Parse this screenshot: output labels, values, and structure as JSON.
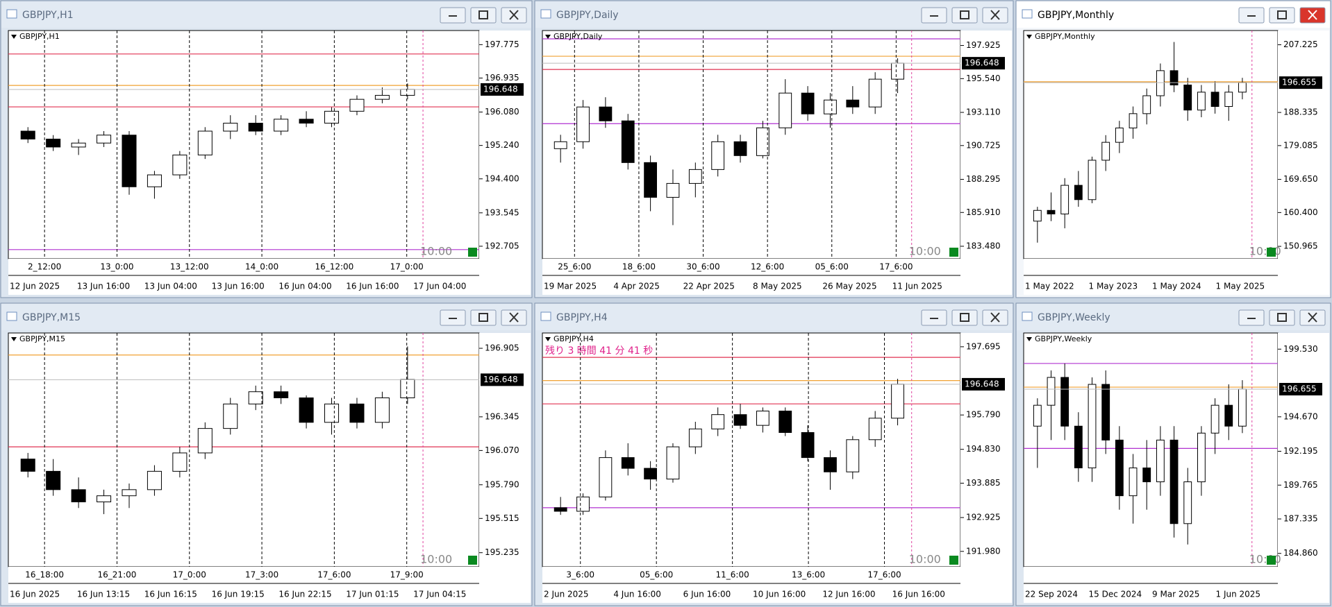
{
  "windows": [
    {
      "title": "GBPJPY,H1",
      "label": "GBPJPY,H1",
      "ylim": [
        192.39,
        198.13
      ],
      "yticks": [
        197.775,
        196.935,
        {
          "value": 196.08,
          "label": "196.080"
        },
        {
          "value": 195.24,
          "label": "195.240"
        },
        {
          "value": 194.4,
          "label": "194.400"
        },
        193.545,
        192.705
      ],
      "price": 196.648,
      "time_marks": [
        "2_12:00",
        "13_0:00",
        "13_12:00",
        "14_0:00",
        "16_12:00",
        "17_0:00"
      ],
      "dates": [
        "12 Jun 2025",
        "13 Jun 16:00",
        "13 Jun 04:00",
        "13 Jun 16:00",
        "16 Jun 04:00",
        "16 Jun 16:00",
        "17 Jun 04:00"
      ],
      "clock": "10:00",
      "levels": [
        {
          "value": 197.54,
          "color": "#e03050"
        },
        {
          "value": 196.75,
          "color": "#f0a030"
        },
        {
          "value": 196.21,
          "color": "#e03050"
        },
        {
          "value": 192.62,
          "color": "#b030d0"
        }
      ],
      "candles": [
        [
          195.6,
          195.7,
          195.3,
          195.4
        ],
        [
          195.4,
          195.5,
          195.1,
          195.2
        ],
        [
          195.2,
          195.4,
          195.0,
          195.3
        ],
        [
          195.3,
          195.6,
          195.2,
          195.5
        ],
        [
          195.5,
          195.6,
          194.0,
          194.2
        ],
        [
          194.2,
          194.6,
          193.9,
          194.5
        ],
        [
          194.5,
          195.1,
          194.4,
          195.0
        ],
        [
          195.0,
          195.7,
          194.9,
          195.6
        ],
        [
          195.6,
          196.0,
          195.4,
          195.8
        ],
        [
          195.8,
          196.0,
          195.5,
          195.6
        ],
        [
          195.6,
          196.0,
          195.5,
          195.9
        ],
        [
          195.9,
          196.1,
          195.7,
          195.8
        ],
        [
          195.8,
          196.2,
          195.7,
          196.1
        ],
        [
          196.1,
          196.5,
          196.0,
          196.4
        ],
        [
          196.4,
          196.7,
          196.3,
          196.5
        ],
        [
          196.5,
          196.8,
          196.4,
          196.65
        ]
      ]
    },
    {
      "title": "GBPJPY,Daily",
      "label": "GBPJPY,Daily",
      "ylim": [
        182.58,
        199.0
      ],
      "yticks": [
        197.925,
        {
          "value": 195.54,
          "label": "195.540"
        },
        {
          "value": 193.11,
          "label": "193.110"
        },
        190.725,
        188.295,
        {
          "value": 185.91,
          "label": "185.910"
        },
        {
          "value": 183.48,
          "label": "183.480"
        }
      ],
      "price": 196.648,
      "time_marks": [
        "25_6:00",
        "18_6:00",
        "30_6:00",
        "12_6:00",
        "05_6:00",
        "17_6:00"
      ],
      "dates": [
        "19 Mar 2025",
        "4 Apr 2025",
        "22 Apr 2025",
        "8 May 2025",
        "26 May 2025",
        "11 Jun 2025"
      ],
      "clock": "10:00",
      "levels": [
        {
          "value": 198.4,
          "color": "#b030d0"
        },
        {
          "value": 197.15,
          "color": "#f0a030"
        },
        {
          "value": 196.2,
          "color": "#e03050"
        },
        {
          "value": 192.3,
          "color": "#b030d0"
        }
      ],
      "candles": [
        [
          190.5,
          191.5,
          189.5,
          191.0
        ],
        [
          191.0,
          194.0,
          190.5,
          193.5
        ],
        [
          193.5,
          194.2,
          192.0,
          192.5
        ],
        [
          192.5,
          193.0,
          189.0,
          189.5
        ],
        [
          189.5,
          190.0,
          186.0,
          187.0
        ],
        [
          187.0,
          189.0,
          185.0,
          188.0
        ],
        [
          188.0,
          189.5,
          187.0,
          189.0
        ],
        [
          189.0,
          191.5,
          188.5,
          191.0
        ],
        [
          191.0,
          191.5,
          189.5,
          190.0
        ],
        [
          190.0,
          192.5,
          189.8,
          192.0
        ],
        [
          192.0,
          195.5,
          191.5,
          194.5
        ],
        [
          194.5,
          195.0,
          192.5,
          193.0
        ],
        [
          193.0,
          194.5,
          192.0,
          194.0
        ],
        [
          194.0,
          195.0,
          193.0,
          193.5
        ],
        [
          193.5,
          196.0,
          193.0,
          195.5
        ],
        [
          195.5,
          197.0,
          194.5,
          196.65
        ]
      ]
    },
    {
      "title": "GBPJPY,Monthly",
      "label": "GBPJPY,Monthly",
      "ylim": [
        147.5,
        211.2
      ],
      "yticks": [
        207.225,
        188.335,
        179.085,
        {
          "value": 169.65,
          "label": "169.650"
        },
        {
          "value": 160.4,
          "label": "160.400"
        },
        150.965
      ],
      "price": 196.655,
      "time_marks": [],
      "dates": [
        "1 May 2022",
        "1 May 2023",
        "1 May 2024",
        "1 May 2025"
      ],
      "clock": "10:00",
      "levels": [
        {
          "value": 196.9,
          "color": "#f0a030"
        }
      ],
      "candles": [
        [
          158,
          162,
          152,
          161
        ],
        [
          161,
          166,
          158,
          160
        ],
        [
          160,
          170,
          156,
          168
        ],
        [
          168,
          172,
          162,
          164
        ],
        [
          164,
          176,
          163,
          175
        ],
        [
          175,
          182,
          172,
          180
        ],
        [
          180,
          186,
          177,
          184
        ],
        [
          184,
          190,
          181,
          188
        ],
        [
          188,
          195,
          185,
          193
        ],
        [
          193,
          202,
          190,
          200
        ],
        [
          200,
          208,
          194,
          196
        ],
        [
          196,
          198,
          186,
          189
        ],
        [
          189,
          196,
          187,
          194
        ],
        [
          194,
          197,
          188,
          190
        ],
        [
          190,
          196,
          186,
          194
        ],
        [
          194,
          198,
          192,
          196.66
        ]
      ]
    },
    {
      "title": "GBPJPY,M15",
      "label": "GBPJPY,M15",
      "ylim": [
        195.12,
        197.03
      ],
      "yticks": [
        196.905,
        196.345,
        {
          "value": 196.07,
          "label": "196.070"
        },
        {
          "value": 195.79,
          "label": "195.790"
        },
        195.515,
        195.235
      ],
      "price": 196.648,
      "time_marks": [
        "16_18:00",
        "16_21:00",
        "17_0:00",
        "17_3:00",
        "17_6:00",
        "17_9:00"
      ],
      "dates": [
        "16 Jun 2025",
        "16 Jun 13:15",
        "16 Jun 16:15",
        "16 Jun 19:15",
        "16 Jun 22:15",
        "17 Jun 01:15",
        "17 Jun 04:15"
      ],
      "clock": "10:00",
      "levels": [
        {
          "value": 196.85,
          "color": "#f0a030"
        },
        {
          "value": 196.1,
          "color": "#e03050"
        }
      ],
      "candles": [
        [
          196.0,
          196.05,
          195.85,
          195.9
        ],
        [
          195.9,
          196.0,
          195.7,
          195.75
        ],
        [
          195.75,
          195.85,
          195.6,
          195.65
        ],
        [
          195.65,
          195.75,
          195.55,
          195.7
        ],
        [
          195.7,
          195.8,
          195.6,
          195.75
        ],
        [
          195.75,
          195.95,
          195.7,
          195.9
        ],
        [
          195.9,
          196.1,
          195.85,
          196.05
        ],
        [
          196.05,
          196.3,
          196.0,
          196.25
        ],
        [
          196.25,
          196.5,
          196.2,
          196.45
        ],
        [
          196.45,
          196.6,
          196.4,
          196.55
        ],
        [
          196.55,
          196.6,
          196.45,
          196.5
        ],
        [
          196.5,
          196.52,
          196.25,
          196.3
        ],
        [
          196.3,
          196.5,
          196.2,
          196.45
        ],
        [
          196.45,
          196.5,
          196.25,
          196.3
        ],
        [
          196.3,
          196.55,
          196.25,
          196.5
        ],
        [
          196.5,
          196.92,
          196.45,
          196.65
        ]
      ]
    },
    {
      "title": "GBPJPY,H4",
      "label": "GBPJPY,H4",
      "countdown": "残り 3 時間 41 分 41 秒",
      "ylim": [
        191.55,
        198.08
      ],
      "yticks": [
        197.695,
        {
          "value": 195.79,
          "label": "195.790"
        },
        {
          "value": 194.83,
          "label": "194.830"
        },
        193.885,
        192.925,
        {
          "value": 191.98,
          "label": "191.980"
        }
      ],
      "price": 196.648,
      "time_marks": [
        "3_6:00",
        "05_6:00",
        "11_6:00",
        "13_6:00",
        "17_6:00"
      ],
      "dates": [
        "2 Jun 2025",
        "4 Jun 16:00",
        "6 Jun 16:00",
        "10 Jun 16:00",
        "12 Jun 16:00",
        "16 Jun 16:00"
      ],
      "clock": "10:00",
      "levels": [
        {
          "value": 197.4,
          "color": "#e03050"
        },
        {
          "value": 196.75,
          "color": "#f0a030"
        },
        {
          "value": 196.1,
          "color": "#e03050"
        },
        {
          "value": 193.2,
          "color": "#b030d0"
        }
      ],
      "candles": [
        [
          193.2,
          193.5,
          193.0,
          193.1
        ],
        [
          193.1,
          193.6,
          193.0,
          193.5
        ],
        [
          193.5,
          194.8,
          193.4,
          194.6
        ],
        [
          194.6,
          195.0,
          194.1,
          194.3
        ],
        [
          194.3,
          194.5,
          193.7,
          194.0
        ],
        [
          194.0,
          195.0,
          193.9,
          194.9
        ],
        [
          194.9,
          195.6,
          194.7,
          195.4
        ],
        [
          195.4,
          196.0,
          195.2,
          195.8
        ],
        [
          195.8,
          196.1,
          195.4,
          195.5
        ],
        [
          195.5,
          196.0,
          195.3,
          195.9
        ],
        [
          195.9,
          196.0,
          195.2,
          195.3
        ],
        [
          195.3,
          195.5,
          194.5,
          194.6
        ],
        [
          194.6,
          194.8,
          193.7,
          194.2
        ],
        [
          194.2,
          195.2,
          194.0,
          195.1
        ],
        [
          195.1,
          195.9,
          194.9,
          195.7
        ],
        [
          195.7,
          196.8,
          195.5,
          196.65
        ]
      ]
    },
    {
      "title": "GBPJPY,Weekly",
      "label": "GBPJPY,Weekly",
      "ylim": [
        183.9,
        200.69
      ],
      "yticks": [
        {
          "value": 199.53,
          "label": "199.530"
        },
        {
          "value": 194.67,
          "label": "194.670"
        },
        192.195,
        189.765,
        187.335,
        {
          "value": 184.86,
          "label": "184.860"
        }
      ],
      "price": 196.655,
      "time_marks": [],
      "dates": [
        "22 Sep 2024",
        "15 Dec 2024",
        "9 Mar 2025",
        "1 Jun 2025"
      ],
      "clock": "10:00",
      "levels": [
        {
          "value": 198.5,
          "color": "#b030d0"
        },
        {
          "value": 196.8,
          "color": "#f0a030"
        },
        {
          "value": 192.4,
          "color": "#b030d0"
        }
      ],
      "candles": [
        [
          194,
          196,
          191,
          195.5
        ],
        [
          195.5,
          198,
          193,
          197.5
        ],
        [
          197.5,
          198.5,
          193,
          194
        ],
        [
          194,
          195,
          190,
          191
        ],
        [
          191,
          197.5,
          190,
          197
        ],
        [
          197,
          198,
          192,
          193
        ],
        [
          193,
          194,
          188,
          189
        ],
        [
          189,
          192,
          187,
          191
        ],
        [
          191,
          193,
          188,
          190
        ],
        [
          190,
          194,
          189,
          193
        ],
        [
          193,
          194,
          186,
          187
        ],
        [
          187,
          191,
          185.5,
          190
        ],
        [
          190,
          194,
          189,
          193.5
        ],
        [
          193.5,
          196,
          192,
          195.5
        ],
        [
          195.5,
          197,
          193,
          194
        ],
        [
          194,
          197.3,
          193.5,
          196.66
        ]
      ]
    }
  ]
}
